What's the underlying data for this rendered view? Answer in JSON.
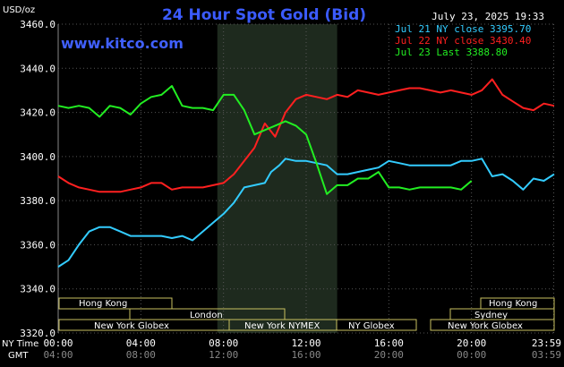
{
  "header": {
    "title": "24 Hour Spot Gold (Bid)",
    "unit": "USD/oz",
    "site": "www.kitco.com",
    "date": "July 23, 2025 19:33"
  },
  "legend": [
    {
      "label": "Jul 21 NY close 3395.70",
      "color": "#33ccff"
    },
    {
      "label": "Jul 22 NY close 3430.40",
      "color": "#ff2020"
    },
    {
      "label": "Jul 23 Last 3388.80",
      "color": "#22ee22"
    }
  ],
  "time_rows": {
    "ny_label": "NY Time",
    "gmt_label": "GMT",
    "ny": [
      "00:00",
      "04:00",
      "08:00",
      "12:00",
      "16:00",
      "20:00",
      "23:59"
    ],
    "gmt": [
      "04:00",
      "08:00",
      "12:00",
      "16:00",
      "20:00",
      "00:00",
      "03:59"
    ]
  },
  "sessions": {
    "hong_kong": "Hong Kong",
    "london": "London",
    "new_york_globex": "New York Globex",
    "new_york_nymex": "New York NYMEX",
    "ny_globex": "NY Globex",
    "hong_kong_2": "Hong Kong",
    "sydney": "Sydney",
    "new_york_globex_2": "New York Globex"
  },
  "chart_data": {
    "type": "line",
    "ylim": [
      3320,
      3460
    ],
    "xlim": [
      0,
      24
    ],
    "y_ticks": [
      3320,
      3340,
      3360,
      3380,
      3400,
      3420,
      3440,
      3460
    ],
    "y_tick_labels": [
      "3320.0",
      "3340.0",
      "3360.0",
      "3380.0",
      "3400.0",
      "3420.0",
      "3440.0",
      "3460.0"
    ],
    "x_ticks": [
      0,
      4,
      8,
      12,
      16,
      20,
      23.98
    ],
    "grid": true,
    "shaded_hours": [
      7.7,
      13.5
    ],
    "series": [
      {
        "name": "Jul 21 NY close 3395.70",
        "color": "#33ccff",
        "points": [
          [
            0,
            3350
          ],
          [
            0.5,
            3353
          ],
          [
            1,
            3360
          ],
          [
            1.5,
            3366
          ],
          [
            2,
            3368
          ],
          [
            2.5,
            3368
          ],
          [
            3,
            3366
          ],
          [
            3.5,
            3364
          ],
          [
            4,
            3364
          ],
          [
            4.5,
            3364
          ],
          [
            5,
            3364
          ],
          [
            5.5,
            3363
          ],
          [
            6,
            3364
          ],
          [
            6.5,
            3362
          ],
          [
            7,
            3366
          ],
          [
            7.5,
            3370
          ],
          [
            8,
            3374
          ],
          [
            8.5,
            3379
          ],
          [
            9,
            3386
          ],
          [
            9.5,
            3387
          ],
          [
            10,
            3388
          ],
          [
            10.3,
            3393
          ],
          [
            10.7,
            3396
          ],
          [
            11,
            3399
          ],
          [
            11.5,
            3398
          ],
          [
            12,
            3398
          ],
          [
            12.5,
            3397
          ],
          [
            13,
            3396
          ],
          [
            13.5,
            3392
          ],
          [
            14,
            3392
          ],
          [
            14.5,
            3393
          ],
          [
            15,
            3394
          ],
          [
            15.5,
            3395
          ],
          [
            16,
            3398
          ],
          [
            16.5,
            3397
          ],
          [
            17,
            3396
          ],
          [
            18,
            3396
          ],
          [
            19,
            3396
          ],
          [
            19.5,
            3398
          ],
          [
            20,
            3398
          ],
          [
            20.5,
            3399
          ],
          [
            21,
            3391
          ],
          [
            21.5,
            3392
          ],
          [
            22,
            3389
          ],
          [
            22.5,
            3385
          ],
          [
            23,
            3390
          ],
          [
            23.5,
            3389
          ],
          [
            24,
            3392
          ]
        ]
      },
      {
        "name": "Jul 22 NY close 3430.40",
        "color": "#ff2020",
        "points": [
          [
            0,
            3391
          ],
          [
            0.5,
            3388
          ],
          [
            1,
            3386
          ],
          [
            1.5,
            3385
          ],
          [
            2,
            3384
          ],
          [
            2.5,
            3384
          ],
          [
            3,
            3384
          ],
          [
            3.5,
            3385
          ],
          [
            4,
            3386
          ],
          [
            4.5,
            3388
          ],
          [
            5,
            3388
          ],
          [
            5.5,
            3385
          ],
          [
            6,
            3386
          ],
          [
            6.5,
            3386
          ],
          [
            7,
            3386
          ],
          [
            7.5,
            3387
          ],
          [
            8,
            3388
          ],
          [
            8.5,
            3392
          ],
          [
            9,
            3398
          ],
          [
            9.5,
            3404
          ],
          [
            10,
            3415
          ],
          [
            10.5,
            3409
          ],
          [
            11,
            3420
          ],
          [
            11.5,
            3426
          ],
          [
            12,
            3428
          ],
          [
            12.5,
            3427
          ],
          [
            13,
            3426
          ],
          [
            13.5,
            3428
          ],
          [
            14,
            3427
          ],
          [
            14.5,
            3430
          ],
          [
            15,
            3429
          ],
          [
            15.5,
            3428
          ],
          [
            16,
            3429
          ],
          [
            16.5,
            3430
          ],
          [
            17,
            3431
          ],
          [
            17.5,
            3431
          ],
          [
            18,
            3430
          ],
          [
            18.5,
            3429
          ],
          [
            19,
            3430
          ],
          [
            19.5,
            3429
          ],
          [
            20,
            3428
          ],
          [
            20.5,
            3430
          ],
          [
            21,
            3435
          ],
          [
            21.5,
            3428
          ],
          [
            22,
            3425
          ],
          [
            22.5,
            3422
          ],
          [
            23,
            3421
          ],
          [
            23.5,
            3424
          ],
          [
            24,
            3423
          ]
        ]
      },
      {
        "name": "Jul 23 Last 3388.80",
        "color": "#22ee22",
        "points": [
          [
            0,
            3423
          ],
          [
            0.5,
            3422
          ],
          [
            1,
            3423
          ],
          [
            1.5,
            3422
          ],
          [
            2,
            3418
          ],
          [
            2.5,
            3423
          ],
          [
            3,
            3422
          ],
          [
            3.5,
            3419
          ],
          [
            4,
            3424
          ],
          [
            4.5,
            3427
          ],
          [
            5,
            3428
          ],
          [
            5.5,
            3432
          ],
          [
            6,
            3423
          ],
          [
            6.5,
            3422
          ],
          [
            7,
            3422
          ],
          [
            7.5,
            3421
          ],
          [
            8,
            3428
          ],
          [
            8.5,
            3428
          ],
          [
            9,
            3421
          ],
          [
            9.5,
            3410
          ],
          [
            10,
            3412
          ],
          [
            10.5,
            3414
          ],
          [
            11,
            3416
          ],
          [
            11.5,
            3414
          ],
          [
            12,
            3410
          ],
          [
            12.5,
            3397
          ],
          [
            13,
            3383
          ],
          [
            13.5,
            3387
          ],
          [
            14,
            3387
          ],
          [
            14.5,
            3390
          ],
          [
            15,
            3390
          ],
          [
            15.5,
            3393
          ],
          [
            16,
            3386
          ],
          [
            16.5,
            3386
          ],
          [
            17,
            3385
          ],
          [
            17.5,
            3386
          ],
          [
            18,
            3386
          ],
          [
            18.5,
            3386
          ],
          [
            19,
            3386
          ],
          [
            19.5,
            3385
          ],
          [
            20,
            3389
          ]
        ]
      }
    ]
  }
}
